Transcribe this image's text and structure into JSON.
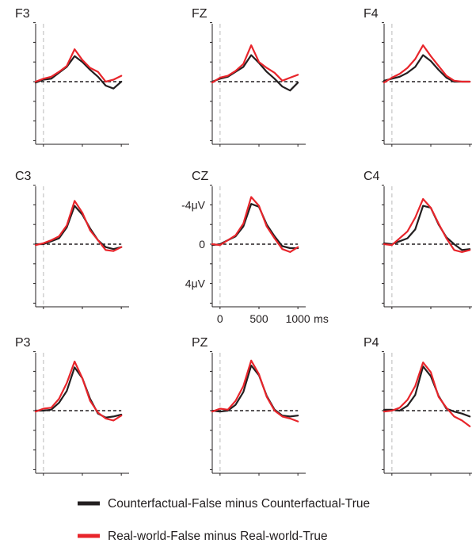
{
  "colors": {
    "counterfactual": "#231f20",
    "realworld": "#e8252b",
    "baseline": "#231f20",
    "onset": "#d0d0d0",
    "axis": "#231f20"
  },
  "legend": {
    "items": [
      {
        "label": "Counterfactual-False minus Counterfactual-True",
        "color": "#231f20"
      },
      {
        "label": "Real-world-False minus Real-world-True",
        "color": "#e8252b"
      }
    ]
  },
  "chart_data": {
    "type": "line",
    "description_axes": {
      "x_ticks": [
        "0",
        "500",
        "1000"
      ],
      "x_unit": "ms",
      "y_ticks": [
        "-4μV",
        "0",
        "4μV"
      ],
      "xlim": [
        -100,
        1100
      ],
      "ylim": [
        6,
        -6
      ],
      "y_inverted": true,
      "labeled_panel": "CZ"
    },
    "panels": [
      {
        "name": "F3",
        "series": [
          {
            "values": [
              [
                -100,
                0.1
              ],
              [
                0,
                -0.2
              ],
              [
                100,
                -0.3
              ],
              [
                200,
                -0.9
              ],
              [
                300,
                -1.5
              ],
              [
                400,
                -2.6
              ],
              [
                500,
                -2.0
              ],
              [
                600,
                -1.2
              ],
              [
                700,
                -0.5
              ],
              [
                800,
                0.4
              ],
              [
                900,
                0.7
              ],
              [
                1000,
                0.0
              ]
            ]
          },
          {
            "values": [
              [
                -100,
                0.0
              ],
              [
                0,
                -0.3
              ],
              [
                100,
                -0.5
              ],
              [
                200,
                -1.0
              ],
              [
                300,
                -1.6
              ],
              [
                400,
                -3.3
              ],
              [
                500,
                -2.2
              ],
              [
                600,
                -1.4
              ],
              [
                700,
                -1.0
              ],
              [
                800,
                0.0
              ],
              [
                900,
                -0.2
              ],
              [
                1000,
                -0.6
              ]
            ]
          }
        ]
      },
      {
        "name": "FZ",
        "series": [
          {
            "values": [
              [
                -100,
                0.0
              ],
              [
                0,
                -0.3
              ],
              [
                100,
                -0.5
              ],
              [
                200,
                -1.0
              ],
              [
                300,
                -1.5
              ],
              [
                400,
                -2.7
              ],
              [
                500,
                -1.9
              ],
              [
                600,
                -1.0
              ],
              [
                700,
                -0.3
              ],
              [
                800,
                0.5
              ],
              [
                900,
                0.9
              ],
              [
                1000,
                0.1
              ]
            ]
          },
          {
            "values": [
              [
                -100,
                0.1
              ],
              [
                0,
                -0.4
              ],
              [
                100,
                -0.6
              ],
              [
                200,
                -1.1
              ],
              [
                300,
                -1.8
              ],
              [
                400,
                -3.7
              ],
              [
                500,
                -2.0
              ],
              [
                600,
                -1.4
              ],
              [
                700,
                -0.9
              ],
              [
                800,
                -0.1
              ],
              [
                900,
                -0.4
              ],
              [
                1000,
                -0.7
              ]
            ]
          }
        ]
      },
      {
        "name": "F4",
        "series": [
          {
            "values": [
              [
                -100,
                -0.1
              ],
              [
                0,
                -0.3
              ],
              [
                100,
                -0.5
              ],
              [
                200,
                -0.9
              ],
              [
                300,
                -1.5
              ],
              [
                400,
                -2.7
              ],
              [
                500,
                -2.1
              ],
              [
                600,
                -1.2
              ],
              [
                700,
                -0.4
              ],
              [
                800,
                0.0
              ],
              [
                900,
                0.0
              ],
              [
                1000,
                0.0
              ]
            ]
          },
          {
            "values": [
              [
                -100,
                0.1
              ],
              [
                0,
                -0.4
              ],
              [
                100,
                -0.8
              ],
              [
                200,
                -1.4
              ],
              [
                300,
                -2.3
              ],
              [
                400,
                -3.7
              ],
              [
                500,
                -2.6
              ],
              [
                600,
                -1.6
              ],
              [
                700,
                -0.6
              ],
              [
                800,
                -0.1
              ],
              [
                900,
                0.0
              ],
              [
                1000,
                0.0
              ]
            ]
          }
        ]
      },
      {
        "name": "C3",
        "series": [
          {
            "values": [
              [
                -100,
                0.0
              ],
              [
                0,
                0.0
              ],
              [
                100,
                -0.3
              ],
              [
                200,
                -0.6
              ],
              [
                300,
                -1.7
              ],
              [
                400,
                -3.9
              ],
              [
                500,
                -3.0
              ],
              [
                600,
                -1.6
              ],
              [
                700,
                -0.4
              ],
              [
                800,
                0.3
              ],
              [
                900,
                0.5
              ],
              [
                1000,
                0.3
              ]
            ]
          },
          {
            "values": [
              [
                -100,
                0.1
              ],
              [
                0,
                -0.1
              ],
              [
                100,
                -0.4
              ],
              [
                200,
                -0.8
              ],
              [
                300,
                -1.9
              ],
              [
                400,
                -4.4
              ],
              [
                500,
                -3.2
              ],
              [
                600,
                -1.4
              ],
              [
                700,
                -0.4
              ],
              [
                800,
                0.6
              ],
              [
                900,
                0.7
              ],
              [
                1000,
                0.3
              ]
            ]
          }
        ]
      },
      {
        "name": "CZ",
        "series": [
          {
            "values": [
              [
                -100,
                0.1
              ],
              [
                0,
                0.0
              ],
              [
                100,
                -0.4
              ],
              [
                200,
                -0.8
              ],
              [
                300,
                -1.8
              ],
              [
                400,
                -4.1
              ],
              [
                500,
                -3.8
              ],
              [
                600,
                -2.0
              ],
              [
                700,
                -0.8
              ],
              [
                800,
                0.2
              ],
              [
                900,
                0.4
              ],
              [
                1000,
                0.4
              ]
            ]
          },
          {
            "values": [
              [
                -100,
                0.0
              ],
              [
                0,
                0.1
              ],
              [
                100,
                -0.4
              ],
              [
                200,
                -0.9
              ],
              [
                300,
                -2.1
              ],
              [
                400,
                -4.8
              ],
              [
                500,
                -3.9
              ],
              [
                600,
                -1.8
              ],
              [
                700,
                -0.6
              ],
              [
                800,
                0.5
              ],
              [
                900,
                0.8
              ],
              [
                1000,
                0.3
              ]
            ]
          }
        ]
      },
      {
        "name": "C4",
        "series": [
          {
            "values": [
              [
                -100,
                -0.1
              ],
              [
                0,
                0.0
              ],
              [
                100,
                -0.3
              ],
              [
                200,
                -0.6
              ],
              [
                300,
                -1.5
              ],
              [
                400,
                -3.9
              ],
              [
                500,
                -3.7
              ],
              [
                600,
                -2.0
              ],
              [
                700,
                -0.7
              ],
              [
                800,
                0.0
              ],
              [
                900,
                0.6
              ],
              [
                1000,
                0.5
              ]
            ]
          },
          {
            "values": [
              [
                -100,
                0.0
              ],
              [
                0,
                0.1
              ],
              [
                100,
                -0.6
              ],
              [
                200,
                -1.3
              ],
              [
                300,
                -2.7
              ],
              [
                400,
                -4.6
              ],
              [
                500,
                -3.7
              ],
              [
                600,
                -2.1
              ],
              [
                700,
                -0.6
              ],
              [
                800,
                0.6
              ],
              [
                900,
                0.8
              ],
              [
                1000,
                0.6
              ]
            ]
          }
        ]
      },
      {
        "name": "P3",
        "series": [
          {
            "values": [
              [
                -100,
                0.0
              ],
              [
                0,
                0.0
              ],
              [
                100,
                -0.1
              ],
              [
                200,
                -0.8
              ],
              [
                300,
                -2.0
              ],
              [
                400,
                -4.4
              ],
              [
                500,
                -3.3
              ],
              [
                600,
                -1.2
              ],
              [
                700,
                0.3
              ],
              [
                800,
                0.7
              ],
              [
                900,
                0.6
              ],
              [
                1000,
                0.4
              ]
            ]
          },
          {
            "values": [
              [
                -100,
                0.1
              ],
              [
                0,
                -0.2
              ],
              [
                100,
                -0.3
              ],
              [
                200,
                -1.2
              ],
              [
                300,
                -2.8
              ],
              [
                400,
                -5.0
              ],
              [
                500,
                -3.3
              ],
              [
                600,
                -1.0
              ],
              [
                700,
                0.2
              ],
              [
                800,
                0.8
              ],
              [
                900,
                1.0
              ],
              [
                1000,
                0.5
              ]
            ]
          }
        ]
      },
      {
        "name": "PZ",
        "series": [
          {
            "values": [
              [
                -100,
                0.0
              ],
              [
                0,
                0.1
              ],
              [
                100,
                0.0
              ],
              [
                200,
                -0.6
              ],
              [
                300,
                -1.9
              ],
              [
                400,
                -4.6
              ],
              [
                500,
                -3.6
              ],
              [
                600,
                -1.5
              ],
              [
                700,
                -0.1
              ],
              [
                800,
                0.5
              ],
              [
                900,
                0.6
              ],
              [
                1000,
                0.5
              ]
            ]
          },
          {
            "values": [
              [
                -100,
                0.1
              ],
              [
                0,
                -0.2
              ],
              [
                100,
                -0.1
              ],
              [
                200,
                -1.0
              ],
              [
                300,
                -2.5
              ],
              [
                400,
                -5.1
              ],
              [
                500,
                -3.7
              ],
              [
                600,
                -1.4
              ],
              [
                700,
                0.0
              ],
              [
                800,
                0.6
              ],
              [
                900,
                0.8
              ],
              [
                1000,
                1.1
              ]
            ]
          }
        ]
      },
      {
        "name": "P4",
        "series": [
          {
            "values": [
              [
                -100,
                -0.1
              ],
              [
                0,
                -0.1
              ],
              [
                100,
                0.0
              ],
              [
                200,
                -0.5
              ],
              [
                300,
                -1.6
              ],
              [
                400,
                -4.5
              ],
              [
                500,
                -3.5
              ],
              [
                600,
                -1.5
              ],
              [
                700,
                -0.2
              ],
              [
                800,
                0.1
              ],
              [
                900,
                0.3
              ],
              [
                1000,
                0.6
              ]
            ]
          },
          {
            "values": [
              [
                -100,
                0.1
              ],
              [
                0,
                0.0
              ],
              [
                100,
                -0.3
              ],
              [
                200,
                -1.1
              ],
              [
                300,
                -2.5
              ],
              [
                400,
                -4.9
              ],
              [
                500,
                -3.9
              ],
              [
                600,
                -1.4
              ],
              [
                700,
                -0.3
              ],
              [
                800,
                0.6
              ],
              [
                900,
                1.0
              ],
              [
                1000,
                1.6
              ]
            ]
          }
        ]
      }
    ]
  }
}
